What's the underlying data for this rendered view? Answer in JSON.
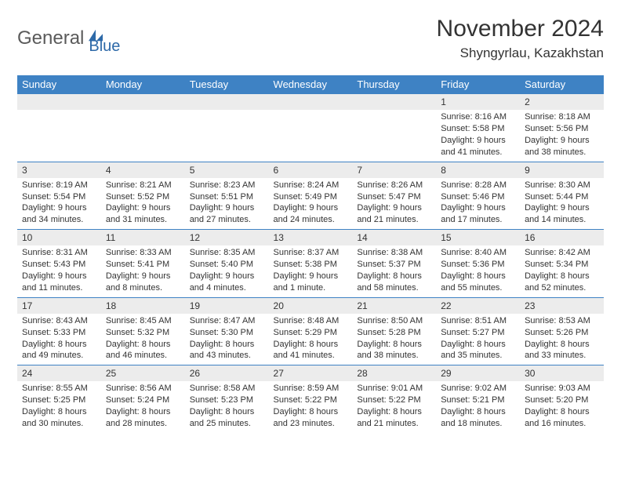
{
  "brand": {
    "part1": "General",
    "part2": "Blue"
  },
  "title": "November 2024",
  "location": "Shyngyrlau, Kazakhstan",
  "colors": {
    "header_bg": "#3e82c4",
    "header_text": "#ffffff",
    "brand_gray": "#5a5a5a",
    "brand_blue": "#2d69a8",
    "daynum_bg": "#ececec",
    "border": "#3e82c4",
    "text": "#333333",
    "page_bg": "#ffffff"
  },
  "typography": {
    "title_fontsize": 30,
    "location_fontsize": 17,
    "header_cell_fontsize": 13,
    "body_fontsize": 11
  },
  "weekdays": [
    "Sunday",
    "Monday",
    "Tuesday",
    "Wednesday",
    "Thursday",
    "Friday",
    "Saturday"
  ],
  "weeks": [
    [
      {
        "day": null
      },
      {
        "day": null
      },
      {
        "day": null
      },
      {
        "day": null
      },
      {
        "day": null
      },
      {
        "day": "1",
        "sunrise": "Sunrise: 8:16 AM",
        "sunset": "Sunset: 5:58 PM",
        "daylight": "Daylight: 9 hours and 41 minutes."
      },
      {
        "day": "2",
        "sunrise": "Sunrise: 8:18 AM",
        "sunset": "Sunset: 5:56 PM",
        "daylight": "Daylight: 9 hours and 38 minutes."
      }
    ],
    [
      {
        "day": "3",
        "sunrise": "Sunrise: 8:19 AM",
        "sunset": "Sunset: 5:54 PM",
        "daylight": "Daylight: 9 hours and 34 minutes."
      },
      {
        "day": "4",
        "sunrise": "Sunrise: 8:21 AM",
        "sunset": "Sunset: 5:52 PM",
        "daylight": "Daylight: 9 hours and 31 minutes."
      },
      {
        "day": "5",
        "sunrise": "Sunrise: 8:23 AM",
        "sunset": "Sunset: 5:51 PM",
        "daylight": "Daylight: 9 hours and 27 minutes."
      },
      {
        "day": "6",
        "sunrise": "Sunrise: 8:24 AM",
        "sunset": "Sunset: 5:49 PM",
        "daylight": "Daylight: 9 hours and 24 minutes."
      },
      {
        "day": "7",
        "sunrise": "Sunrise: 8:26 AM",
        "sunset": "Sunset: 5:47 PM",
        "daylight": "Daylight: 9 hours and 21 minutes."
      },
      {
        "day": "8",
        "sunrise": "Sunrise: 8:28 AM",
        "sunset": "Sunset: 5:46 PM",
        "daylight": "Daylight: 9 hours and 17 minutes."
      },
      {
        "day": "9",
        "sunrise": "Sunrise: 8:30 AM",
        "sunset": "Sunset: 5:44 PM",
        "daylight": "Daylight: 9 hours and 14 minutes."
      }
    ],
    [
      {
        "day": "10",
        "sunrise": "Sunrise: 8:31 AM",
        "sunset": "Sunset: 5:43 PM",
        "daylight": "Daylight: 9 hours and 11 minutes."
      },
      {
        "day": "11",
        "sunrise": "Sunrise: 8:33 AM",
        "sunset": "Sunset: 5:41 PM",
        "daylight": "Daylight: 9 hours and 8 minutes."
      },
      {
        "day": "12",
        "sunrise": "Sunrise: 8:35 AM",
        "sunset": "Sunset: 5:40 PM",
        "daylight": "Daylight: 9 hours and 4 minutes."
      },
      {
        "day": "13",
        "sunrise": "Sunrise: 8:37 AM",
        "sunset": "Sunset: 5:38 PM",
        "daylight": "Daylight: 9 hours and 1 minute."
      },
      {
        "day": "14",
        "sunrise": "Sunrise: 8:38 AM",
        "sunset": "Sunset: 5:37 PM",
        "daylight": "Daylight: 8 hours and 58 minutes."
      },
      {
        "day": "15",
        "sunrise": "Sunrise: 8:40 AM",
        "sunset": "Sunset: 5:36 PM",
        "daylight": "Daylight: 8 hours and 55 minutes."
      },
      {
        "day": "16",
        "sunrise": "Sunrise: 8:42 AM",
        "sunset": "Sunset: 5:34 PM",
        "daylight": "Daylight: 8 hours and 52 minutes."
      }
    ],
    [
      {
        "day": "17",
        "sunrise": "Sunrise: 8:43 AM",
        "sunset": "Sunset: 5:33 PM",
        "daylight": "Daylight: 8 hours and 49 minutes."
      },
      {
        "day": "18",
        "sunrise": "Sunrise: 8:45 AM",
        "sunset": "Sunset: 5:32 PM",
        "daylight": "Daylight: 8 hours and 46 minutes."
      },
      {
        "day": "19",
        "sunrise": "Sunrise: 8:47 AM",
        "sunset": "Sunset: 5:30 PM",
        "daylight": "Daylight: 8 hours and 43 minutes."
      },
      {
        "day": "20",
        "sunrise": "Sunrise: 8:48 AM",
        "sunset": "Sunset: 5:29 PM",
        "daylight": "Daylight: 8 hours and 41 minutes."
      },
      {
        "day": "21",
        "sunrise": "Sunrise: 8:50 AM",
        "sunset": "Sunset: 5:28 PM",
        "daylight": "Daylight: 8 hours and 38 minutes."
      },
      {
        "day": "22",
        "sunrise": "Sunrise: 8:51 AM",
        "sunset": "Sunset: 5:27 PM",
        "daylight": "Daylight: 8 hours and 35 minutes."
      },
      {
        "day": "23",
        "sunrise": "Sunrise: 8:53 AM",
        "sunset": "Sunset: 5:26 PM",
        "daylight": "Daylight: 8 hours and 33 minutes."
      }
    ],
    [
      {
        "day": "24",
        "sunrise": "Sunrise: 8:55 AM",
        "sunset": "Sunset: 5:25 PM",
        "daylight": "Daylight: 8 hours and 30 minutes."
      },
      {
        "day": "25",
        "sunrise": "Sunrise: 8:56 AM",
        "sunset": "Sunset: 5:24 PM",
        "daylight": "Daylight: 8 hours and 28 minutes."
      },
      {
        "day": "26",
        "sunrise": "Sunrise: 8:58 AM",
        "sunset": "Sunset: 5:23 PM",
        "daylight": "Daylight: 8 hours and 25 minutes."
      },
      {
        "day": "27",
        "sunrise": "Sunrise: 8:59 AM",
        "sunset": "Sunset: 5:22 PM",
        "daylight": "Daylight: 8 hours and 23 minutes."
      },
      {
        "day": "28",
        "sunrise": "Sunrise: 9:01 AM",
        "sunset": "Sunset: 5:22 PM",
        "daylight": "Daylight: 8 hours and 21 minutes."
      },
      {
        "day": "29",
        "sunrise": "Sunrise: 9:02 AM",
        "sunset": "Sunset: 5:21 PM",
        "daylight": "Daylight: 8 hours and 18 minutes."
      },
      {
        "day": "30",
        "sunrise": "Sunrise: 9:03 AM",
        "sunset": "Sunset: 5:20 PM",
        "daylight": "Daylight: 8 hours and 16 minutes."
      }
    ]
  ]
}
